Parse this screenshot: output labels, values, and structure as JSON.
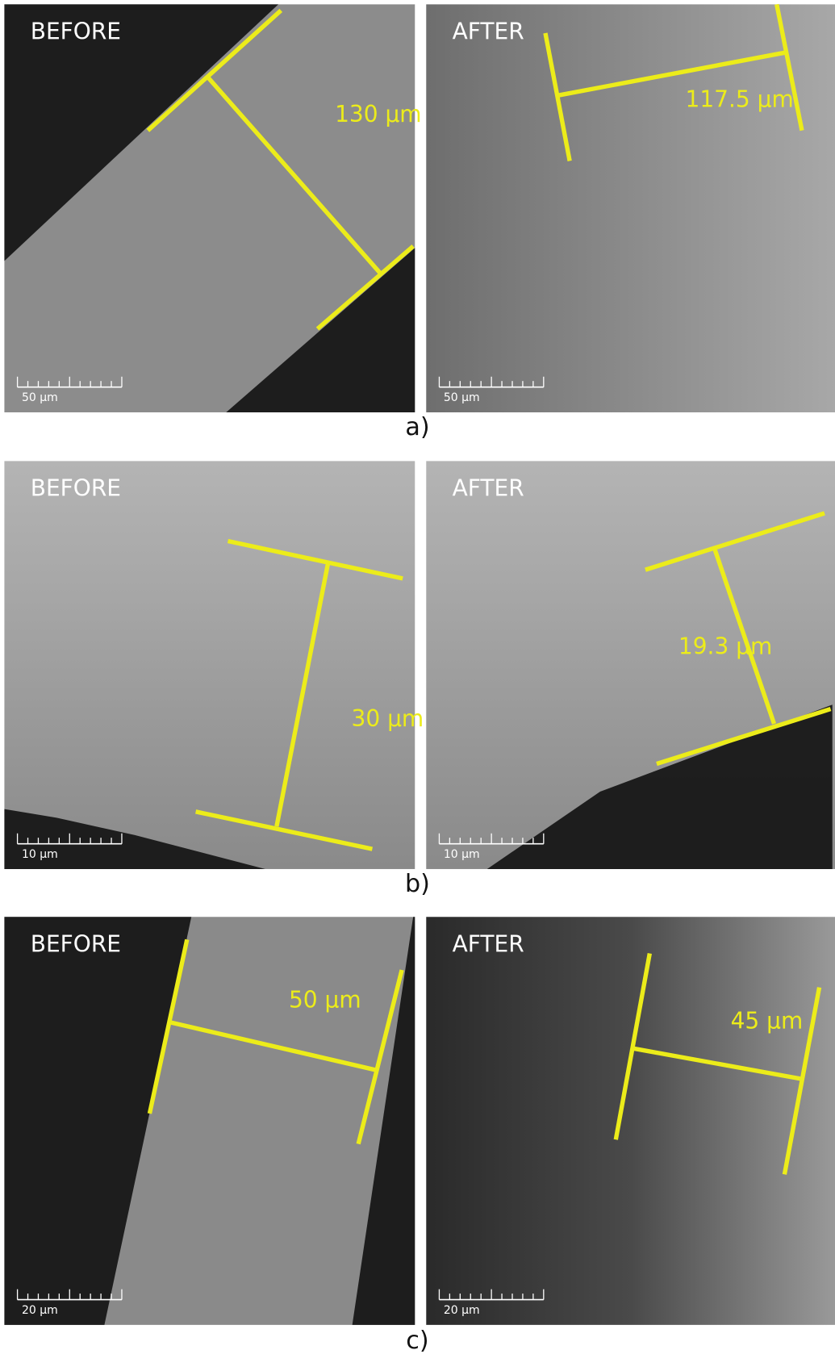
{
  "panels": [
    {
      "label": "a)",
      "images": [
        {
          "tag": "BEFORE",
          "measurement": "130 μm",
          "scale_bar": "50 μm"
        },
        {
          "tag": "AFTER",
          "measurement": "117.5 μm",
          "scale_bar": "50 μm"
        }
      ]
    },
    {
      "label": "b)",
      "images": [
        {
          "tag": "BEFORE",
          "measurement": "30 μm",
          "scale_bar": "10 μm"
        },
        {
          "tag": "AFTER",
          "measurement": "19.3 μm",
          "scale_bar": "10 μm"
        }
      ]
    },
    {
      "label": "c)",
      "images": [
        {
          "tag": "BEFORE",
          "measurement": "50 μm",
          "scale_bar": "20 μm"
        },
        {
          "tag": "AFTER",
          "measurement": "45 μm",
          "scale_bar": "20 μm"
        }
      ]
    }
  ]
}
